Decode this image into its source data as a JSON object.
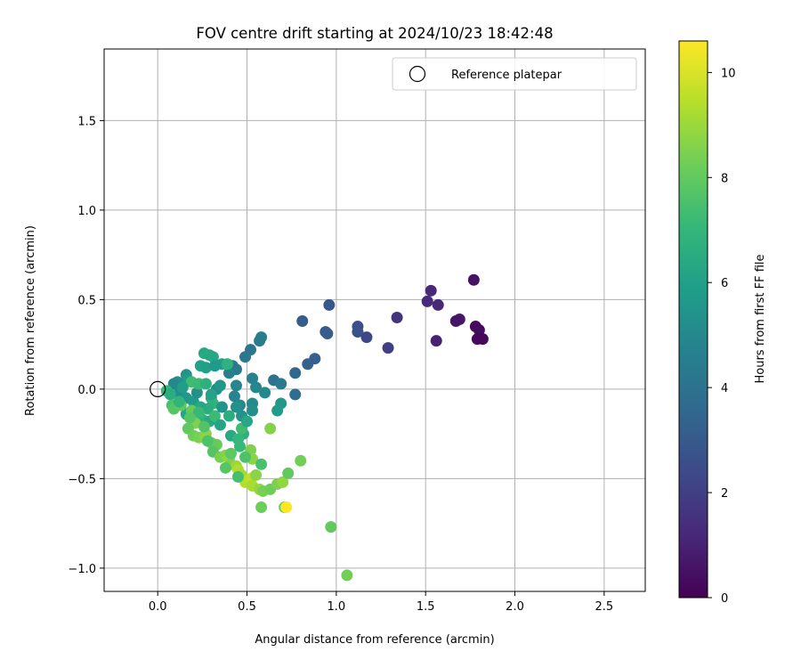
{
  "chart_data": {
    "type": "scatter",
    "title": "FOV centre drift starting at 2024/10/23 18:42:48",
    "xlabel": "Angular distance from reference (arcmin)",
    "ylabel": "Rotation from reference (arcmin)",
    "xlim": [
      -0.3,
      2.73
    ],
    "ylim": [
      -1.13,
      1.9
    ],
    "xticks": [
      "0.0",
      "0.5",
      "1.0",
      "1.5",
      "2.0",
      "2.5"
    ],
    "yticks": [
      "−1.0",
      "−0.5",
      "0.0",
      "0.5",
      "1.0",
      "1.5"
    ],
    "xtick_values": [
      0,
      0.5,
      1.0,
      1.5,
      2.0,
      2.5
    ],
    "ytick_values": [
      -1.0,
      -0.5,
      0.0,
      0.5,
      1.0,
      1.5
    ],
    "grid": true,
    "legend": {
      "placement": "upper-right",
      "label": "Reference platepar"
    },
    "reference_point": {
      "x": 0.0,
      "y": 0.0
    },
    "colorbar": {
      "label": "Hours from first FF file",
      "range": [
        0,
        10.6
      ],
      "ticks": [
        "0",
        "2",
        "4",
        "6",
        "8",
        "10"
      ],
      "tick_values": [
        0,
        2,
        4,
        6,
        8,
        10
      ],
      "colormap": [
        "#440154",
        "#482878",
        "#3e4989",
        "#31688e",
        "#26828e",
        "#1f9e89",
        "#35b779",
        "#6ece58",
        "#b5de2b",
        "#fde725"
      ]
    },
    "points": [
      {
        "x": 1.77,
        "y": 0.61,
        "h": 0.5
      },
      {
        "x": 1.53,
        "y": 0.55,
        "h": 1.2
      },
      {
        "x": 1.51,
        "y": 0.49,
        "h": 1.3
      },
      {
        "x": 1.57,
        "y": 0.47,
        "h": 1.2
      },
      {
        "x": 1.34,
        "y": 0.4,
        "h": 1.6
      },
      {
        "x": 1.69,
        "y": 0.39,
        "h": 0.7
      },
      {
        "x": 1.67,
        "y": 0.38,
        "h": 0.6
      },
      {
        "x": 1.78,
        "y": 0.35,
        "h": 0.2
      },
      {
        "x": 1.8,
        "y": 0.33,
        "h": 0.3
      },
      {
        "x": 1.56,
        "y": 0.27,
        "h": 1.0
      },
      {
        "x": 1.79,
        "y": 0.28,
        "h": 0.2
      },
      {
        "x": 1.82,
        "y": 0.28,
        "h": 0.2
      },
      {
        "x": 1.29,
        "y": 0.23,
        "h": 2.0
      },
      {
        "x": 1.17,
        "y": 0.29,
        "h": 2.3
      },
      {
        "x": 1.12,
        "y": 0.35,
        "h": 2.6
      },
      {
        "x": 1.12,
        "y": 0.32,
        "h": 2.7
      },
      {
        "x": 0.96,
        "y": 0.47,
        "h": 2.9
      },
      {
        "x": 0.81,
        "y": 0.38,
        "h": 3.1
      },
      {
        "x": 0.94,
        "y": 0.32,
        "h": 3.0
      },
      {
        "x": 0.95,
        "y": 0.31,
        "h": 3.1
      },
      {
        "x": 0.88,
        "y": 0.17,
        "h": 3.2
      },
      {
        "x": 0.84,
        "y": 0.14,
        "h": 3.3
      },
      {
        "x": 0.77,
        "y": 0.09,
        "h": 3.6
      },
      {
        "x": 0.77,
        "y": -0.03,
        "h": 3.8
      },
      {
        "x": 0.65,
        "y": 0.05,
        "h": 4.0
      },
      {
        "x": 0.69,
        "y": 0.03,
        "h": 4.3
      },
      {
        "x": 0.58,
        "y": 0.29,
        "h": 4.6
      },
      {
        "x": 0.57,
        "y": 0.27,
        "h": 4.4
      },
      {
        "x": 0.52,
        "y": 0.22,
        "h": 4.1
      },
      {
        "x": 0.49,
        "y": 0.18,
        "h": 4.2
      },
      {
        "x": 0.42,
        "y": 0.13,
        "h": 4.5
      },
      {
        "x": 0.44,
        "y": 0.11,
        "h": 4.3
      },
      {
        "x": 0.4,
        "y": 0.09,
        "h": 4.6
      },
      {
        "x": 0.53,
        "y": 0.06,
        "h": 4.7
      },
      {
        "x": 0.44,
        "y": 0.02,
        "h": 4.9
      },
      {
        "x": 0.43,
        "y": -0.04,
        "h": 4.8
      },
      {
        "x": 0.46,
        "y": -0.09,
        "h": 5.0
      },
      {
        "x": 0.53,
        "y": -0.08,
        "h": 5.1
      },
      {
        "x": 0.53,
        "y": -0.12,
        "h": 5.2
      },
      {
        "x": 0.47,
        "y": -0.15,
        "h": 5.4
      },
      {
        "x": 0.69,
        "y": -0.08,
        "h": 5.6
      },
      {
        "x": 0.67,
        "y": -0.12,
        "h": 5.8
      },
      {
        "x": 0.36,
        "y": 0.14,
        "h": 5.9
      },
      {
        "x": 0.29,
        "y": 0.19,
        "h": 6.2
      },
      {
        "x": 0.31,
        "y": 0.18,
        "h": 6.3
      },
      {
        "x": 0.26,
        "y": 0.2,
        "h": 6.4
      },
      {
        "x": 0.24,
        "y": 0.13,
        "h": 6.1
      },
      {
        "x": 0.27,
        "y": 0.12,
        "h": 6.0
      },
      {
        "x": 0.32,
        "y": 0.13,
        "h": 5.7
      },
      {
        "x": 0.16,
        "y": 0.08,
        "h": 5.5
      },
      {
        "x": 0.17,
        "y": 0.05,
        "h": 5.8
      },
      {
        "x": 0.11,
        "y": 0.04,
        "h": 5.2
      },
      {
        "x": 0.09,
        "y": 0.03,
        "h": 5.0
      },
      {
        "x": 0.13,
        "y": -0.01,
        "h": 5.4
      },
      {
        "x": 0.12,
        "y": -0.02,
        "h": 5.3
      },
      {
        "x": 0.16,
        "y": -0.05,
        "h": 5.6
      },
      {
        "x": 0.2,
        "y": -0.07,
        "h": 5.7
      },
      {
        "x": 0.22,
        "y": -0.02,
        "h": 5.3
      },
      {
        "x": 0.33,
        "y": 0.0,
        "h": 5.1
      },
      {
        "x": 0.3,
        "y": -0.05,
        "h": 6.5
      },
      {
        "x": 0.31,
        "y": -0.08,
        "h": 6.8
      },
      {
        "x": 0.28,
        "y": -0.11,
        "h": 6.6
      },
      {
        "x": 0.24,
        "y": -0.1,
        "h": 6.3
      },
      {
        "x": 0.18,
        "y": -0.13,
        "h": 6.0
      },
      {
        "x": 0.16,
        "y": -0.14,
        "h": 6.2
      },
      {
        "x": 0.21,
        "y": -0.18,
        "h": 6.7
      },
      {
        "x": 0.25,
        "y": -0.17,
        "h": 6.9
      },
      {
        "x": 0.29,
        "y": -0.18,
        "h": 6.4
      },
      {
        "x": 0.32,
        "y": -0.15,
        "h": 7.2
      },
      {
        "x": 0.4,
        "y": -0.15,
        "h": 6.6
      },
      {
        "x": 0.41,
        "y": -0.26,
        "h": 6.4
      },
      {
        "x": 0.48,
        "y": -0.25,
        "h": 6.7
      },
      {
        "x": 0.45,
        "y": -0.28,
        "h": 7.0
      },
      {
        "x": 0.47,
        "y": -0.22,
        "h": 7.3
      },
      {
        "x": 0.39,
        "y": 0.14,
        "h": 6.8
      },
      {
        "x": 0.19,
        "y": 0.04,
        "h": 7.3
      },
      {
        "x": 0.23,
        "y": 0.03,
        "h": 7.2
      },
      {
        "x": 0.05,
        "y": -0.01,
        "h": 7.0
      },
      {
        "x": 0.07,
        "y": -0.03,
        "h": 6.6
      },
      {
        "x": 0.08,
        "y": -0.09,
        "h": 7.5
      },
      {
        "x": 0.09,
        "y": -0.11,
        "h": 7.8
      },
      {
        "x": 0.13,
        "y": -0.09,
        "h": 7.9
      },
      {
        "x": 0.19,
        "y": -0.12,
        "h": 8.1
      },
      {
        "x": 0.2,
        "y": -0.18,
        "h": 8.3
      },
      {
        "x": 0.21,
        "y": -0.19,
        "h": 8.5
      },
      {
        "x": 0.17,
        "y": -0.22,
        "h": 8.0
      },
      {
        "x": 0.2,
        "y": -0.26,
        "h": 8.2
      },
      {
        "x": 0.23,
        "y": -0.27,
        "h": 8.4
      },
      {
        "x": 0.26,
        "y": -0.27,
        "h": 8.6
      },
      {
        "x": 0.27,
        "y": -0.25,
        "h": 8.7
      },
      {
        "x": 0.3,
        "y": -0.3,
        "h": 8.3
      },
      {
        "x": 0.33,
        "y": -0.31,
        "h": 8.1
      },
      {
        "x": 0.31,
        "y": -0.35,
        "h": 7.7
      },
      {
        "x": 0.35,
        "y": -0.38,
        "h": 8.4
      },
      {
        "x": 0.38,
        "y": -0.37,
        "h": 8.6
      },
      {
        "x": 0.4,
        "y": -0.39,
        "h": 8.8
      },
      {
        "x": 0.41,
        "y": -0.42,
        "h": 8.5
      },
      {
        "x": 0.44,
        "y": -0.43,
        "h": 9.0
      },
      {
        "x": 0.45,
        "y": -0.45,
        "h": 9.3
      },
      {
        "x": 0.47,
        "y": -0.48,
        "h": 9.1
      },
      {
        "x": 0.49,
        "y": -0.52,
        "h": 9.4
      },
      {
        "x": 0.52,
        "y": -0.5,
        "h": 9.6
      },
      {
        "x": 0.53,
        "y": -0.54,
        "h": 9.2
      },
      {
        "x": 0.55,
        "y": -0.48,
        "h": 8.7
      },
      {
        "x": 0.57,
        "y": -0.56,
        "h": 8.9
      },
      {
        "x": 0.59,
        "y": -0.57,
        "h": 8.4
      },
      {
        "x": 0.63,
        "y": -0.56,
        "h": 8.2
      },
      {
        "x": 0.67,
        "y": -0.53,
        "h": 8.5
      },
      {
        "x": 0.7,
        "y": -0.52,
        "h": 8.8
      },
      {
        "x": 0.73,
        "y": -0.47,
        "h": 8.0
      },
      {
        "x": 0.8,
        "y": -0.4,
        "h": 8.3
      },
      {
        "x": 0.58,
        "y": -0.66,
        "h": 8.2
      },
      {
        "x": 0.71,
        "y": -0.66,
        "h": 8.1
      },
      {
        "x": 0.72,
        "y": -0.66,
        "h": 10.6
      },
      {
        "x": 0.97,
        "y": -0.77,
        "h": 8.0
      },
      {
        "x": 1.06,
        "y": -1.04,
        "h": 8.3
      },
      {
        "x": 0.63,
        "y": -0.22,
        "h": 8.6
      },
      {
        "x": 0.52,
        "y": -0.34,
        "h": 8.5
      },
      {
        "x": 0.53,
        "y": -0.39,
        "h": 8.7
      },
      {
        "x": 0.58,
        "y": -0.42,
        "h": 7.5
      },
      {
        "x": 0.41,
        "y": -0.36,
        "h": 7.9
      },
      {
        "x": 0.38,
        "y": -0.44,
        "h": 7.8
      },
      {
        "x": 0.45,
        "y": -0.49,
        "h": 7.4
      },
      {
        "x": 0.28,
        "y": -0.29,
        "h": 7.6
      },
      {
        "x": 0.26,
        "y": -0.21,
        "h": 7.7
      },
      {
        "x": 0.23,
        "y": -0.13,
        "h": 7.1
      },
      {
        "x": 0.18,
        "y": -0.16,
        "h": 7.8
      },
      {
        "x": 0.12,
        "y": -0.07,
        "h": 6.9
      },
      {
        "x": 0.14,
        "y": 0.01,
        "h": 5.9
      },
      {
        "x": 0.36,
        "y": -0.1,
        "h": 5.5
      },
      {
        "x": 0.3,
        "y": -0.03,
        "h": 6.1
      },
      {
        "x": 0.35,
        "y": -0.2,
        "h": 6.2
      },
      {
        "x": 0.44,
        "y": -0.1,
        "h": 5.3
      },
      {
        "x": 0.27,
        "y": 0.03,
        "h": 6.7
      },
      {
        "x": 0.35,
        "y": 0.02,
        "h": 5.6
      },
      {
        "x": 0.55,
        "y": 0.01,
        "h": 4.9
      },
      {
        "x": 0.6,
        "y": -0.02,
        "h": 5.0
      },
      {
        "x": 0.5,
        "y": -0.18,
        "h": 6.3
      },
      {
        "x": 0.46,
        "y": -0.32,
        "h": 7.1
      },
      {
        "x": 0.49,
        "y": -0.38,
        "h": 7.6
      }
    ]
  }
}
